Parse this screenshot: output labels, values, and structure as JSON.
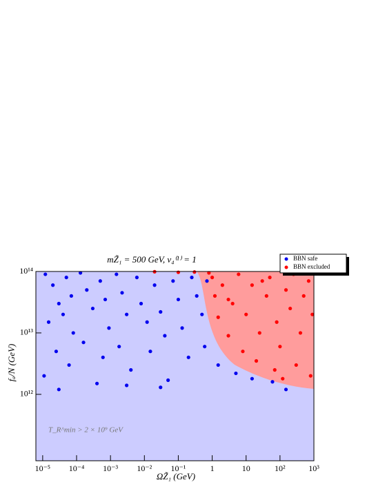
{
  "chart_data": {
    "type": "scatter",
    "title": "mZ̃₁ = 500 GeV, v₄⁽¹⁾ = 1",
    "x_label": "ΩZ̃₁ (GeV)",
    "y_label": "fₐ/N (GeV)",
    "annotation": "T_R^min > 2 × 10⁹ GeV",
    "x_scale": "log",
    "y_scale": "log",
    "legend": "top-right",
    "xlim": [
      6.3e-06,
      1000
    ],
    "ylim": [
      83000000000.0,
      100000000000000.0
    ],
    "xticks": [
      {
        "value": 1e-05,
        "label": "10⁻⁵"
      },
      {
        "value": 0.0001,
        "label": "10⁻⁴"
      },
      {
        "value": 0.001,
        "label": "10⁻³"
      },
      {
        "value": 0.01,
        "label": "10⁻²"
      },
      {
        "value": 0.1,
        "label": "10⁻¹"
      },
      1,
      10,
      {
        "value": 100,
        "label": "10²"
      },
      {
        "value": 1000,
        "label": "10³"
      }
    ],
    "yticks": [
      {
        "value": 1000000000000.0,
        "label": "10¹²"
      },
      {
        "value": 10000000000000.0,
        "label": "10¹³"
      },
      {
        "value": 100000000000000.0,
        "label": "10¹⁴"
      }
    ],
    "series": [
      {
        "name": "BBN safe",
        "color": "#0000ee",
        "x": [
          1.2e-05,
          2e-05,
          3e-05,
          1.5e-05,
          2.5e-05,
          1.1e-05,
          5e-05,
          7e-05,
          4e-05,
          8e-05,
          6e-05,
          0.00013,
          0.0002,
          0.0003,
          0.00016,
          0.0004,
          0.0005,
          0.0007,
          0.0009,
          0.0006,
          0.0015,
          0.0022,
          0.003,
          0.0018,
          0.004,
          0.006,
          0.008,
          0.012,
          0.015,
          0.02,
          0.03,
          0.04,
          0.05,
          0.07,
          0.1,
          0.13,
          0.2,
          0.25,
          0.35,
          0.5,
          0.6,
          0.7,
          1.5,
          5,
          15,
          60,
          150,
          0.03,
          0.003,
          3e-05
        ],
        "y": [
          90000000000000.0,
          60000000000000.0,
          30000000000000.0,
          15000000000000.0,
          5000000000000.0,
          2000000000000.0,
          80000000000000.0,
          40000000000000.0,
          20000000000000.0,
          10000000000000.0,
          3000000000000.0,
          95000000000000.0,
          50000000000000.0,
          25000000000000.0,
          7000000000000.0,
          1500000000000.0,
          70000000000000.0,
          35000000000000.0,
          12000000000000.0,
          4000000000000.0,
          90000000000000.0,
          45000000000000.0,
          20000000000000.0,
          6000000000000.0,
          2500000000000.0,
          80000000000000.0,
          30000000000000.0,
          15000000000000.0,
          5000000000000.0,
          60000000000000.0,
          22000000000000.0,
          9000000000000.0,
          1700000000000.0,
          70000000000000.0,
          35000000000000.0,
          12000000000000.0,
          4000000000000.0,
          80000000000000.0,
          40000000000000.0,
          20000000000000.0,
          6000000000000.0,
          70000000000000.0,
          3000000000000.0,
          2200000000000.0,
          1800000000000.0,
          1600000000000.0,
          1200000000000.0,
          1300000000000.0,
          1400000000000.0,
          1200000000000.0
        ]
      },
      {
        "name": "BBN excluded",
        "color": "#ff0000",
        "x": [
          1,
          1.2,
          1.5,
          2,
          3,
          4,
          6,
          8,
          10,
          15,
          20,
          25,
          40,
          50,
          70,
          80,
          100,
          150,
          200,
          250,
          300,
          400,
          500,
          700,
          800,
          900,
          0.8,
          0.3,
          0.1,
          0.02,
          3,
          30,
          120
        ],
        "y": [
          80000000000000.0,
          40000000000000.0,
          18000000000000.0,
          60000000000000.0,
          9000000000000.0,
          30000000000000.0,
          90000000000000.0,
          5000000000000.0,
          20000000000000.0,
          60000000000000.0,
          3500000000000.0,
          10000000000000.0,
          40000000000000.0,
          80000000000000.0,
          2500000000000.0,
          15000000000000.0,
          6000000000000.0,
          50000000000000.0,
          25000000000000.0,
          90000000000000.0,
          3000000000000.0,
          10000000000000.0,
          40000000000000.0,
          70000000000000.0,
          2000000000000.0,
          20000000000000.0,
          95000000000000.0,
          98000000000000.0,
          97000000000000.0,
          99000000000000.0,
          35000000000000.0,
          70000000000000.0,
          1800000000000.0
        ]
      }
    ]
  }
}
